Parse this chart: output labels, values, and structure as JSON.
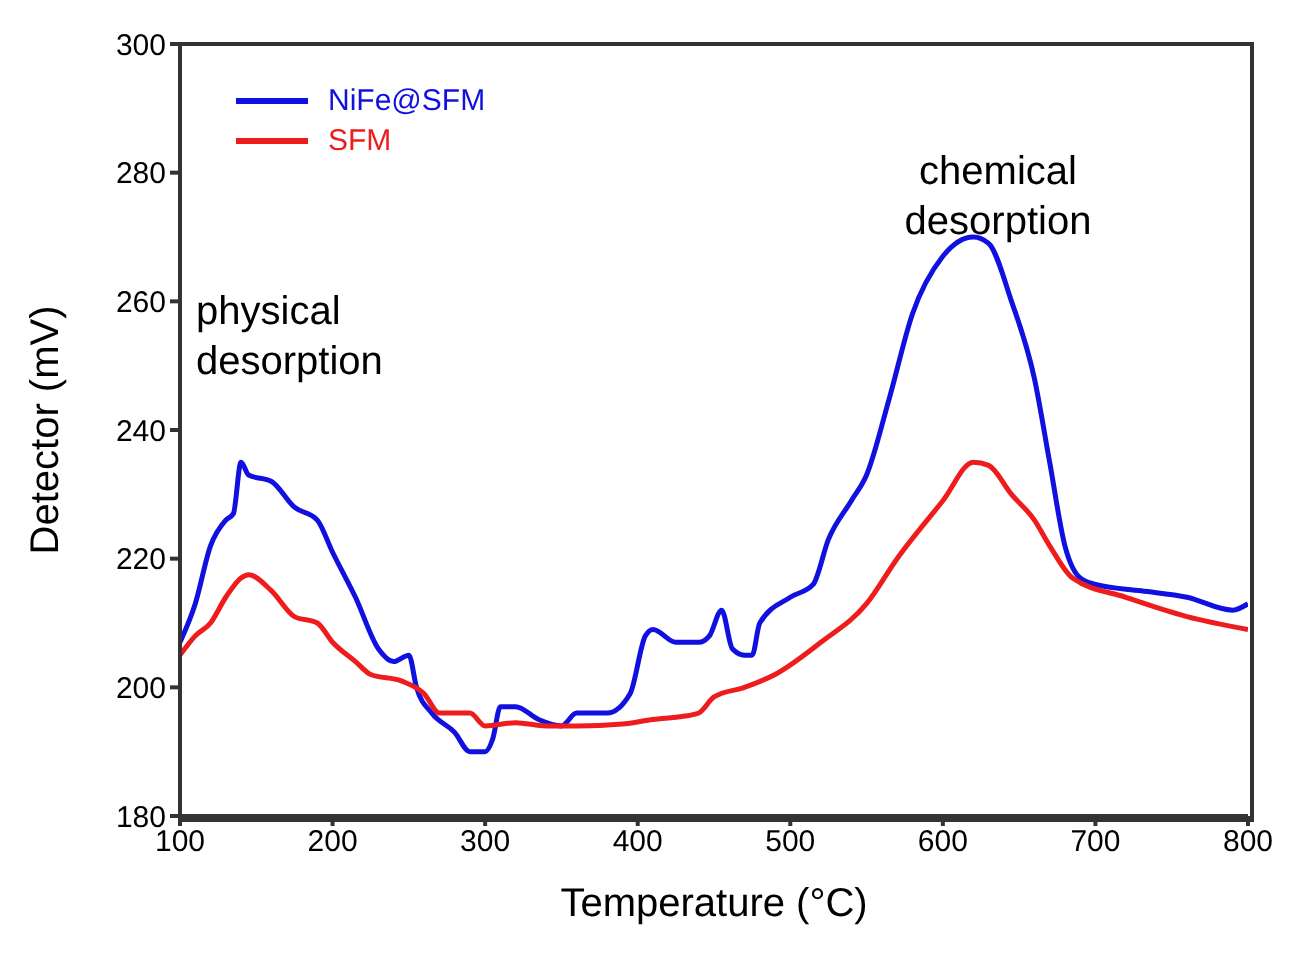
{
  "chart_data": {
    "type": "line",
    "xlabel": "Temperature (°C)",
    "ylabel": "Detector (mV)",
    "xlim": [
      100,
      800
    ],
    "xticks": [
      100,
      200,
      300,
      400,
      500,
      600,
      700,
      800
    ],
    "ylim": [
      180,
      300
    ],
    "yticks": [
      180,
      200,
      220,
      240,
      260,
      280,
      300
    ],
    "legend": "top left",
    "marker": "none",
    "line_style": "solid",
    "annotations": [
      "physical desorption",
      "chemical desorption"
    ],
    "series": [
      {
        "name": "NiFe@SFM",
        "color": "#1010e0",
        "x": [
          100,
          110,
          120,
          130,
          135,
          140,
          145,
          160,
          175,
          190,
          200,
          215,
          230,
          240,
          250,
          255,
          265,
          280,
          290,
          300,
          305,
          310,
          320,
          335,
          350,
          360,
          380,
          395,
          405,
          410,
          425,
          440,
          447,
          455,
          462,
          470,
          475,
          480,
          500,
          515,
          525,
          540,
          550,
          565,
          580,
          600,
          620,
          630,
          645,
          660,
          670,
          680,
          690,
          700,
          730,
          760,
          790,
          800
        ],
        "values": [
          207,
          213,
          222,
          226,
          227,
          235,
          233,
          232,
          228,
          226,
          221,
          214,
          206,
          204,
          205,
          200,
          196,
          193,
          190,
          190,
          192,
          197,
          197,
          195,
          194,
          196,
          196,
          199,
          208,
          209,
          207,
          207,
          208,
          212,
          206,
          205,
          205,
          210,
          214,
          216,
          223,
          229,
          233,
          245,
          258,
          267,
          270,
          269,
          260,
          248,
          235,
          222,
          217,
          216,
          215,
          214,
          212,
          213
        ]
      },
      {
        "name": "SFM",
        "color": "#ee1c1c",
        "x": [
          100,
          110,
          120,
          130,
          140,
          145,
          160,
          175,
          190,
          200,
          215,
          225,
          245,
          260,
          270,
          290,
          300,
          320,
          340,
          360,
          390,
          410,
          430,
          440,
          450,
          470,
          490,
          520,
          550,
          570,
          600,
          620,
          630,
          645,
          660,
          670,
          685,
          720,
          760,
          800
        ],
        "values": [
          205,
          208,
          210,
          214,
          217,
          217.5,
          215,
          211,
          210,
          207,
          204,
          202,
          201,
          199,
          196,
          196,
          194,
          194.5,
          194,
          194,
          194.3,
          195,
          195.5,
          196,
          198.5,
          200,
          202,
          207,
          213,
          220,
          229,
          235,
          234.5,
          230,
          226,
          222,
          217,
          214,
          211,
          209
        ]
      }
    ]
  }
}
